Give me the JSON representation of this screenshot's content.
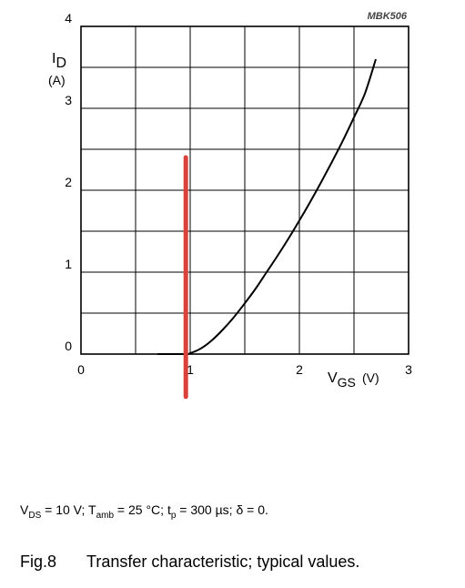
{
  "chart_data": {
    "type": "line",
    "code": "MBK506",
    "ylabel": {
      "symbol": "I",
      "sub": "D",
      "unit": "(A)"
    },
    "xlabel": {
      "symbol": "V",
      "sub": "GS",
      "unit": "(V)"
    },
    "xlim": [
      0,
      3
    ],
    "ylim": [
      0,
      4
    ],
    "x_ticks": [
      "0",
      "1",
      "2",
      "3"
    ],
    "y_ticks": [
      "0",
      "1",
      "2",
      "3",
      "4"
    ],
    "x_grid_step": 0.5,
    "y_grid_step": 0.5,
    "grid": true,
    "series": [
      {
        "color": "#000000",
        "x": [
          0.7,
          0.95,
          1.0,
          1.1,
          1.2,
          1.3,
          1.4,
          1.5,
          1.6,
          1.7,
          1.8,
          1.9,
          2.0,
          2.1,
          2.2,
          2.3,
          2.4,
          2.5,
          2.6,
          2.7
        ],
        "y": [
          0.0,
          0.0,
          0.01,
          0.07,
          0.17,
          0.3,
          0.45,
          0.62,
          0.8,
          1.0,
          1.2,
          1.41,
          1.63,
          1.86,
          2.1,
          2.35,
          2.61,
          2.89,
          3.18,
          3.6
        ]
      }
    ],
    "annotation_line": {
      "color": "#d9413a",
      "x": 0.96,
      "y_top": 2.4,
      "y_bottom": -0.52
    }
  },
  "conditions": {
    "vds_sym": "V",
    "vds_sub": "DS",
    "vds_val": " = 10 V; ",
    "tamb_sym": "T",
    "tamb_sub": "amb",
    "tamb_val": " = 25 °C; ",
    "tp_sym": "t",
    "tp_sub": "p",
    "tp_val": " = 300 µs; δ = 0."
  },
  "caption": {
    "number": "Fig.8",
    "text": "Transfer characteristic; typical values."
  }
}
